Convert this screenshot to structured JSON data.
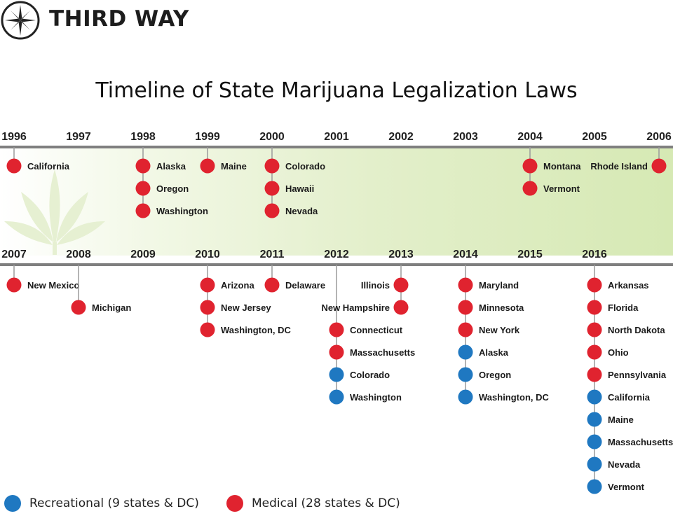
{
  "brand": {
    "name": "THIRD WAY",
    "logo_icon": "compass-icon"
  },
  "chart_data": {
    "type": "timeline",
    "title": "Timeline of State Marijuana Legalization Laws",
    "colors": {
      "recreational": "#1f78c1",
      "medical": "#e0232f",
      "axis": "#7f7f7f",
      "band": "#d6e9b4",
      "leaf": "#e6f0d2"
    },
    "rows": [
      {
        "years": [
          "1996",
          "1997",
          "1998",
          "1999",
          "2000",
          "2001",
          "2002",
          "2003",
          "2004",
          "2005",
          "2006"
        ],
        "events": [
          {
            "year": "1996",
            "items": [
              {
                "state": "California",
                "type": "medical"
              }
            ]
          },
          {
            "year": "1998",
            "items": [
              {
                "state": "Alaska",
                "type": "medical"
              },
              {
                "state": "Oregon",
                "type": "medical"
              },
              {
                "state": "Washington",
                "type": "medical"
              }
            ]
          },
          {
            "year": "1999",
            "items": [
              {
                "state": "Maine",
                "type": "medical"
              }
            ]
          },
          {
            "year": "2000",
            "items": [
              {
                "state": "Colorado",
                "type": "medical"
              },
              {
                "state": "Hawaii",
                "type": "medical"
              },
              {
                "state": "Nevada",
                "type": "medical"
              }
            ]
          },
          {
            "year": "2004",
            "items": [
              {
                "state": "Montana",
                "type": "medical"
              },
              {
                "state": "Vermont",
                "type": "medical"
              }
            ]
          },
          {
            "year": "2006",
            "label_side": "left",
            "items": [
              {
                "state": "Rhode Island",
                "type": "medical"
              }
            ]
          }
        ]
      },
      {
        "years": [
          "2007",
          "2008",
          "2009",
          "2010",
          "2011",
          "2012",
          "2013",
          "2014",
          "2015",
          "2016"
        ],
        "events": [
          {
            "year": "2007",
            "items": [
              {
                "state": "New Mexico",
                "type": "medical"
              }
            ]
          },
          {
            "year": "2008",
            "start_slot": 1,
            "items": [
              {
                "state": "Michigan",
                "type": "medical"
              }
            ]
          },
          {
            "year": "2010",
            "items": [
              {
                "state": "Arizona",
                "type": "medical"
              },
              {
                "state": "New Jersey",
                "type": "medical"
              },
              {
                "state": "Washington, DC",
                "type": "medical"
              }
            ]
          },
          {
            "year": "2011",
            "items": [
              {
                "state": "Delaware",
                "type": "medical"
              }
            ]
          },
          {
            "year": "2012",
            "start_slot": 2,
            "items": [
              {
                "state": "Connecticut",
                "type": "medical"
              },
              {
                "state": "Massachusetts",
                "type": "medical"
              },
              {
                "state": "Colorado",
                "type": "recreational"
              },
              {
                "state": "Washington",
                "type": "recreational"
              }
            ]
          },
          {
            "year": "2013",
            "label_side": "left",
            "items": [
              {
                "state": "Illinois",
                "type": "medical"
              },
              {
                "state": "New Hampshire",
                "type": "medical"
              }
            ]
          },
          {
            "year": "2014",
            "items": [
              {
                "state": "Maryland",
                "type": "medical"
              },
              {
                "state": "Minnesota",
                "type": "medical"
              },
              {
                "state": "New York",
                "type": "medical"
              },
              {
                "state": "Alaska",
                "type": "recreational"
              },
              {
                "state": "Oregon",
                "type": "recreational"
              },
              {
                "state": "Washington, DC",
                "type": "recreational"
              }
            ]
          },
          {
            "year": "2016",
            "items": [
              {
                "state": "Arkansas",
                "type": "medical"
              },
              {
                "state": "Florida",
                "type": "medical"
              },
              {
                "state": "North Dakota",
                "type": "medical"
              },
              {
                "state": "Ohio",
                "type": "medical"
              },
              {
                "state": "Pennsylvania",
                "type": "medical"
              },
              {
                "state": "California",
                "type": "recreational"
              },
              {
                "state": "Maine",
                "type": "recreational"
              },
              {
                "state": "Massachusetts",
                "type": "recreational"
              },
              {
                "state": "Nevada",
                "type": "recreational"
              },
              {
                "state": "Vermont",
                "type": "recreational"
              }
            ]
          }
        ]
      }
    ],
    "legend": [
      {
        "label": "Recreational (9 states & DC)",
        "type": "recreational"
      },
      {
        "label": "Medical (28 states & DC)",
        "type": "medical"
      }
    ]
  }
}
